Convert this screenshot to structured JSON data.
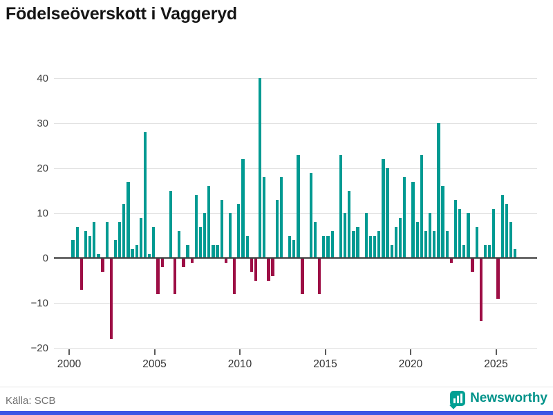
{
  "title": "Födelseöverskott i Vaggeryd",
  "chart_data": {
    "type": "bar",
    "title": "Födelseöverskott i Vaggeryd",
    "frequency": "quarterly",
    "period_start": "2000-Q1",
    "period_end": "2026-Q1",
    "xlabel": "",
    "ylabel": "",
    "ylim": [
      -20,
      40
    ],
    "grid": "horizontal",
    "legend_position": "none",
    "x_tick_labels": [
      "2000",
      "2005",
      "2010",
      "2015",
      "2020",
      "2025"
    ],
    "y_ticks": [
      40,
      30,
      20,
      10,
      0,
      -10,
      -20
    ],
    "y_tick_labels": [
      "40",
      "30",
      "20",
      "10",
      "0",
      "−10",
      "−20"
    ],
    "colors": {
      "positive": "#009A92",
      "negative": "#9D0E45"
    },
    "values": [
      4,
      7,
      -7,
      6,
      5,
      8,
      1,
      -3,
      8,
      -18,
      4,
      8,
      12,
      17,
      2,
      3,
      9,
      28,
      1,
      7,
      -8,
      -2,
      0,
      15,
      -8,
      6,
      -2,
      3,
      -1,
      14,
      7,
      10,
      16,
      3,
      3,
      13,
      -1,
      10,
      -8,
      12,
      22,
      5,
      -3,
      -5,
      40,
      18,
      -5,
      -4,
      13,
      18,
      0,
      5,
      4,
      23,
      -8,
      0,
      19,
      8,
      -8,
      5,
      5,
      6,
      0,
      23,
      10,
      15,
      6,
      7,
      0,
      10,
      5,
      5,
      6,
      22,
      20,
      3,
      7,
      9,
      18,
      0,
      17,
      8,
      23,
      6,
      10,
      6,
      30,
      16,
      6,
      -1,
      13,
      11,
      3,
      10,
      -3,
      7,
      -14,
      3,
      3,
      11,
      -9,
      14,
      12,
      8,
      2
    ]
  },
  "footer": {
    "source": "Källa: SCB",
    "brand": "Newsworthy"
  }
}
